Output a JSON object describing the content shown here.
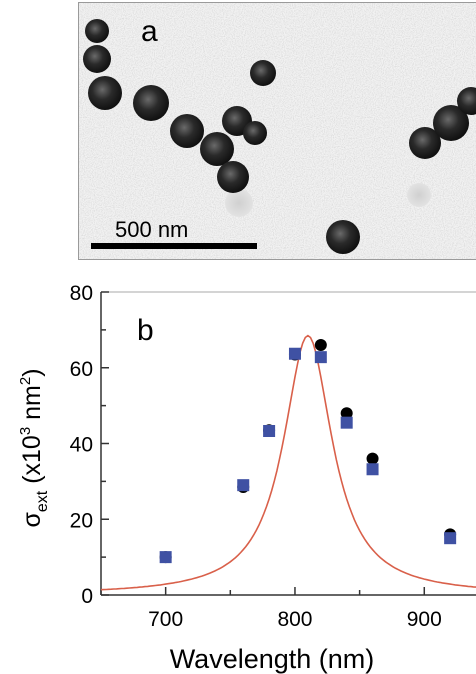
{
  "panel_a": {
    "label": "a",
    "scale_bar_label": "500 nm"
  },
  "chart_data": {
    "type": "scatter",
    "panel_label": "b",
    "xlabel": "Wavelength (nm)",
    "ylabel": "σext (x10³ nm²)",
    "ylabel_parts": {
      "symbol": "σ",
      "subscript": "ext",
      "unit_pre": " (x10",
      "sup1": "3",
      "unit_mid": " nm",
      "sup2": "2",
      "unit_post": ")"
    },
    "xlim": [
      650,
      940
    ],
    "ylim": [
      0,
      80
    ],
    "xticks": [
      700,
      800,
      900
    ],
    "yticks": [
      0,
      20,
      40,
      60,
      80
    ],
    "series": [
      {
        "marker": "circle",
        "color": "#000000",
        "points": [
          [
            700,
            10
          ],
          [
            760,
            28.5
          ],
          [
            780,
            43.5
          ],
          [
            800,
            63.5
          ],
          [
            820,
            66
          ],
          [
            840,
            48
          ],
          [
            860,
            36
          ],
          [
            920,
            16
          ]
        ]
      },
      {
        "marker": "square",
        "color": "#3f51a3",
        "points": [
          [
            700,
            10
          ],
          [
            760,
            29
          ],
          [
            780,
            43.3
          ],
          [
            800,
            63.7
          ],
          [
            820,
            62.8
          ],
          [
            840,
            45.5
          ],
          [
            860,
            33.2
          ],
          [
            920,
            15
          ]
        ]
      },
      {
        "marker": "line",
        "color": "#d9604a",
        "fit": {
          "amplitude": 68.5,
          "center": 810,
          "gamma": 46
        }
      }
    ]
  }
}
